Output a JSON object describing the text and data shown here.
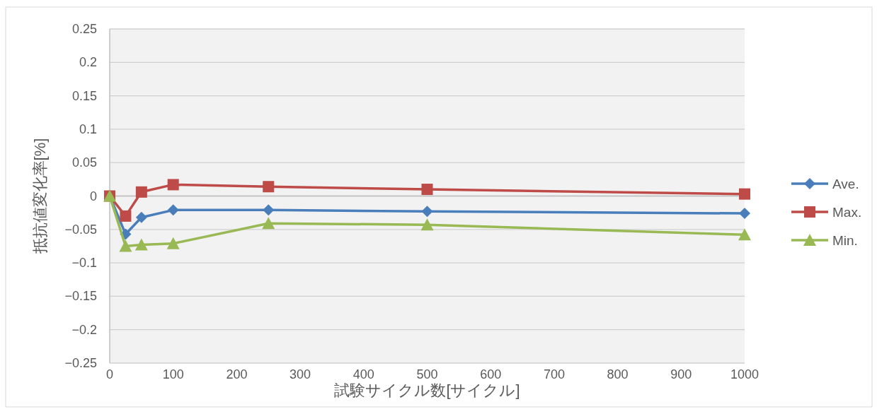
{
  "chart_data": {
    "type": "line",
    "xlabel": "試験サイクル数[サイクル]",
    "ylabel": "抵抗値変化率[%]",
    "xlim": [
      0,
      1000
    ],
    "xticks": [
      0,
      100,
      200,
      300,
      400,
      500,
      600,
      700,
      800,
      900,
      1000
    ],
    "ylim": [
      -0.25,
      0.25
    ],
    "yticks": [
      0.25,
      0.2,
      0.15,
      0.1,
      0.05,
      0,
      {
        "value": -0.05,
        "label": "−0.05"
      },
      {
        "value": -0.1,
        "label": "−0.1"
      },
      {
        "value": -0.15,
        "label": "−0.15"
      },
      {
        "value": -0.2,
        "label": "−0.2"
      },
      {
        "value": -0.25,
        "label": "−0.25"
      }
    ],
    "grid": "y",
    "legend": "right",
    "series": [
      {
        "name": "Ave.",
        "color": "#4a7ebb",
        "marker": "diamond",
        "x": [
          0,
          25,
          50,
          100,
          250,
          500,
          1000
        ],
        "values": [
          0,
          -0.057,
          -0.032,
          -0.021,
          -0.021,
          -0.023,
          -0.026
        ]
      },
      {
        "name": "Max.",
        "color": "#be4b48",
        "marker": "square",
        "x": [
          0,
          25,
          50,
          100,
          250,
          500,
          1000
        ],
        "values": [
          0,
          -0.03,
          0.006,
          0.017,
          0.014,
          0.01,
          0.003
        ]
      },
      {
        "name": "Min.",
        "color": "#98b954",
        "marker": "triangle",
        "x": [
          0,
          25,
          50,
          100,
          250,
          500,
          1000
        ],
        "values": [
          0,
          -0.075,
          -0.073,
          -0.071,
          -0.041,
          -0.043,
          -0.058
        ]
      }
    ]
  }
}
